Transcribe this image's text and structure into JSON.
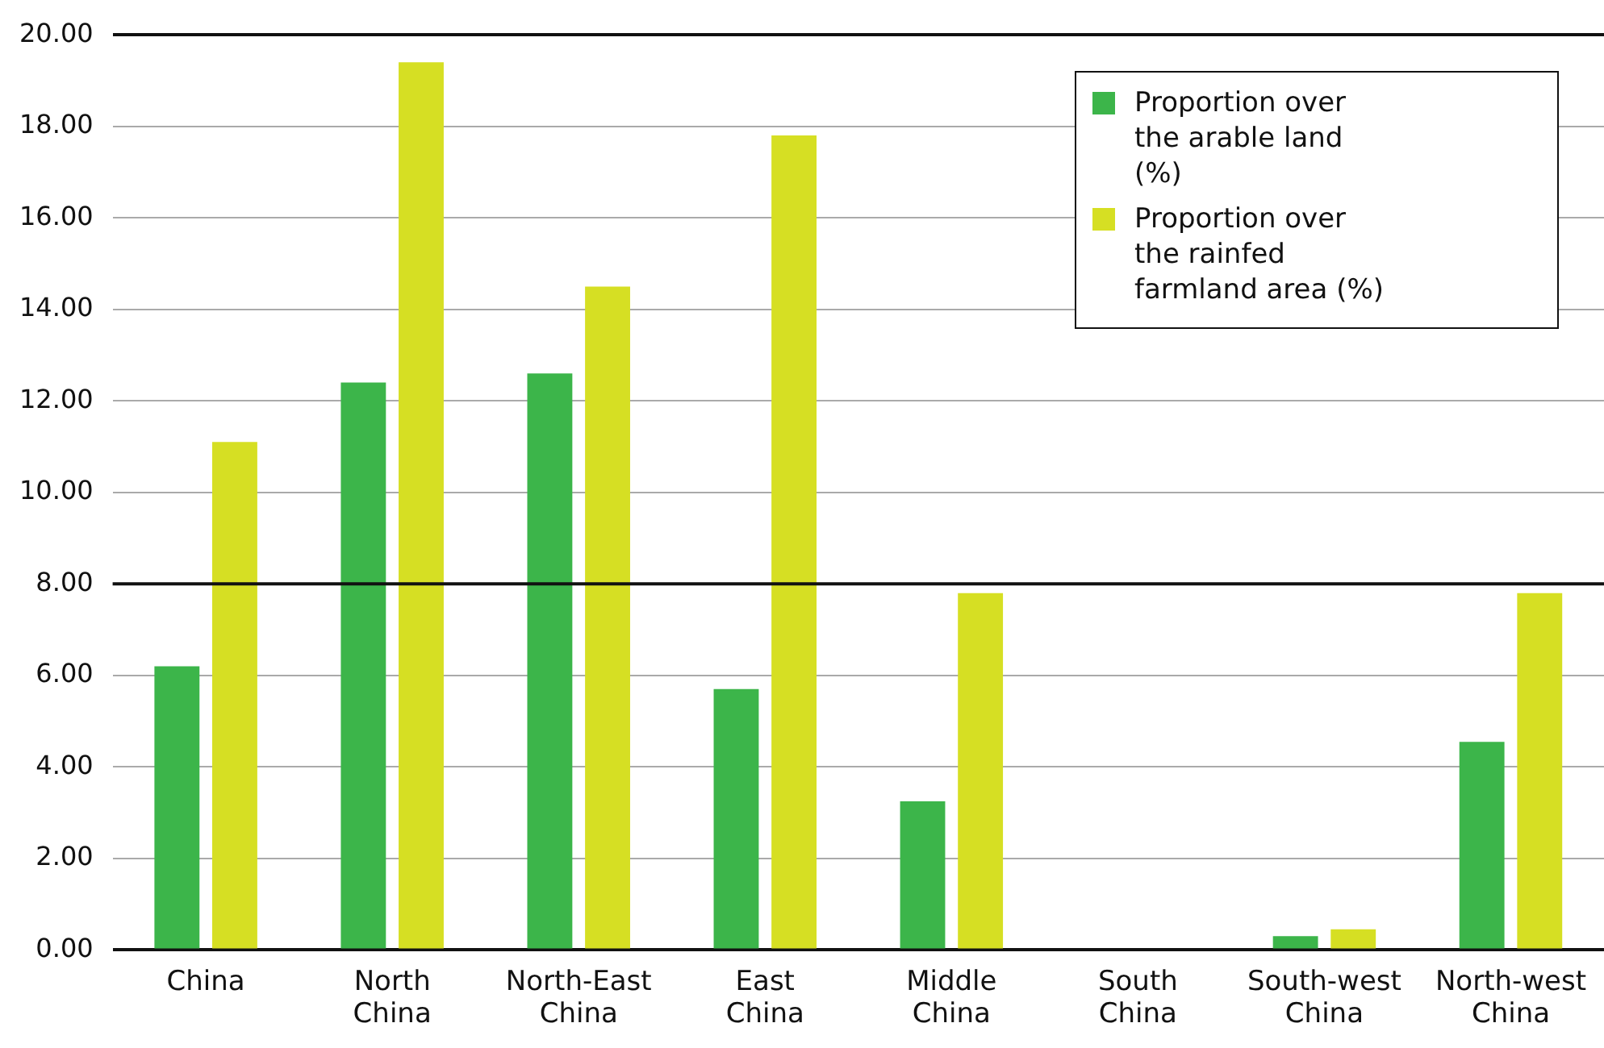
{
  "chart_data": {
    "type": "bar",
    "categories": [
      "China",
      "North China",
      "North-East China",
      "East China",
      "Middle China",
      "South China",
      "South-west China",
      "North-west China"
    ],
    "series": [
      {
        "name": "Proportion over the arable land (%)",
        "color": "#3cb54a",
        "values": [
          6.2,
          12.4,
          12.6,
          5.7,
          3.25,
          0,
          0.3,
          4.55
        ]
      },
      {
        "name": "Proportion over the rainfed farmland area (%)",
        "color": "#d6df23",
        "values": [
          11.1,
          19.4,
          14.5,
          17.8,
          7.8,
          0,
          0.45,
          7.8
        ]
      }
    ],
    "ylim": [
      0,
      20
    ],
    "yticks": [
      {
        "value": 0,
        "label": "0.00"
      },
      {
        "value": 2,
        "label": "2.00"
      },
      {
        "value": 4,
        "label": "4.00"
      },
      {
        "value": 6,
        "label": "6.00"
      },
      {
        "value": 8,
        "label": "8.00"
      },
      {
        "value": 10,
        "label": "10.00"
      },
      {
        "value": 12,
        "label": "12.00"
      },
      {
        "value": 14,
        "label": "14.00"
      },
      {
        "value": 16,
        "label": "16.00"
      },
      {
        "value": 18,
        "label": "18.00"
      },
      {
        "value": 20,
        "label": "20.00"
      }
    ],
    "ref_lines": [
      {
        "axis": "y",
        "value": 8,
        "color": "#111111"
      }
    ],
    "grid": "y",
    "legend": "top right"
  }
}
